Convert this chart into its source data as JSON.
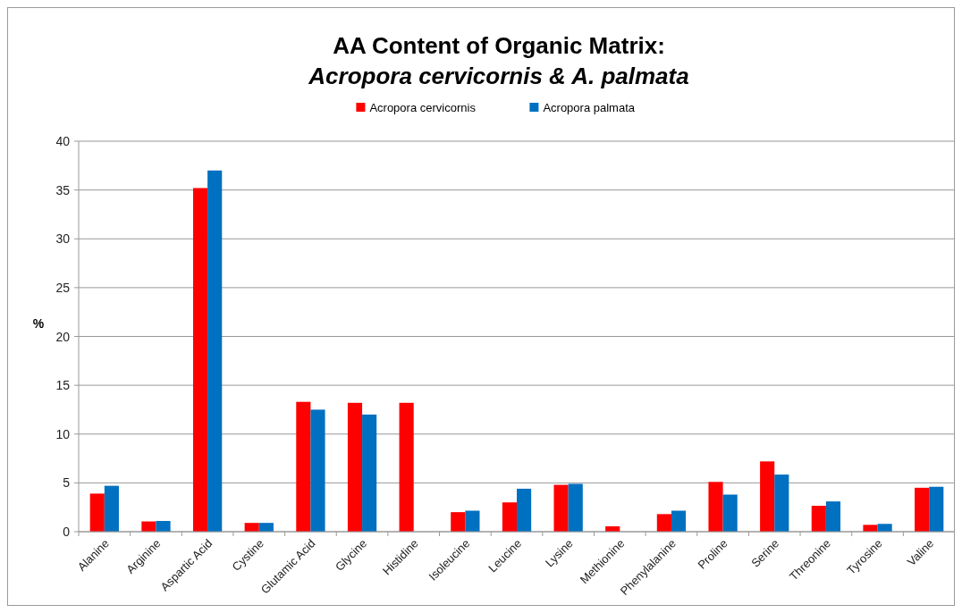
{
  "chart_data": {
    "type": "bar",
    "title": "AA Content of Organic Matrix:\nAcropora cervicornis & A. palmata",
    "ylabel": "%",
    "categories": [
      "Alanine",
      "Arginine",
      "Aspartic Acid",
      "Cystine",
      "Glutamic Acid",
      "Glycine",
      "Histidine",
      "Isoleucine",
      "Leucine",
      "Lysine",
      "Methionine",
      "Phenylalanine",
      "Proline",
      "Serine",
      "Threonine",
      "Tyrosine",
      "Valine"
    ],
    "series": [
      {
        "name": "Acropora cervicornis",
        "color": "#ff0000",
        "values": [
          3.9,
          1.05,
          35.2,
          0.9,
          13.3,
          13.2,
          13.2,
          2.0,
          3.0,
          4.8,
          0.55,
          1.8,
          5.1,
          7.2,
          2.65,
          0.7,
          4.5
        ]
      },
      {
        "name": "Acropora palmata",
        "color": "#0070c0",
        "values": [
          4.7,
          1.1,
          37.0,
          0.9,
          12.5,
          12.0,
          null,
          2.15,
          4.4,
          4.9,
          null,
          2.15,
          3.8,
          5.85,
          3.1,
          0.8,
          4.6
        ]
      }
    ],
    "ylim": [
      0,
      40
    ],
    "yticks": [
      0,
      5,
      10,
      15,
      20,
      25,
      30,
      35,
      40
    ],
    "grid": "y",
    "legend": "top"
  }
}
